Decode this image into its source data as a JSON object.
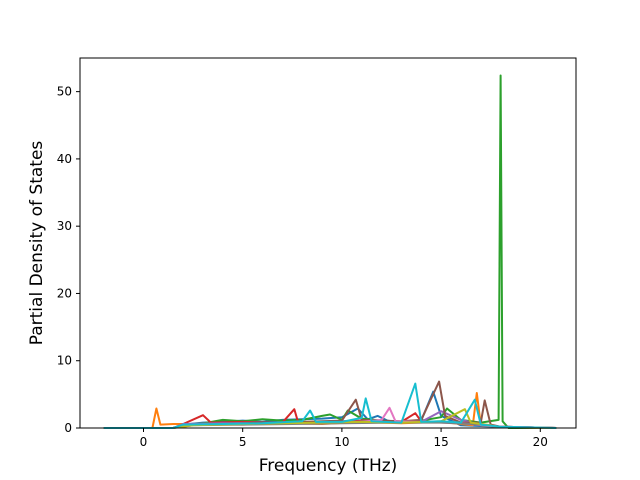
{
  "chart_data": {
    "type": "line",
    "title": "",
    "xlabel": "Frequency (THz)",
    "ylabel": "Partial Density of States",
    "xlim": [
      -3.2,
      21.8
    ],
    "ylim": [
      0,
      55
    ],
    "xticks": [
      0,
      5,
      10,
      15,
      20
    ],
    "yticks": [
      0,
      10,
      20,
      30,
      40,
      50
    ],
    "grid": false,
    "legend": "none",
    "series": [
      {
        "color": "#1f77b4",
        "points": [
          [
            -2,
            0
          ],
          [
            1.5,
            0
          ],
          [
            2.0,
            0.5
          ],
          [
            3.0,
            0.8
          ],
          [
            4.0,
            0.9
          ],
          [
            5.0,
            1.1
          ],
          [
            6.0,
            0.9
          ],
          [
            7.0,
            1.2
          ],
          [
            8.0,
            1.3
          ],
          [
            9.0,
            1.4
          ],
          [
            10.0,
            1.6
          ],
          [
            10.8,
            2.9
          ],
          [
            11.3,
            1.3
          ],
          [
            11.8,
            1.8
          ],
          [
            12.3,
            1.1
          ],
          [
            13.0,
            0.8
          ],
          [
            14.0,
            1.1
          ],
          [
            14.6,
            5.4
          ],
          [
            15.0,
            1.8
          ],
          [
            16.0,
            0.4
          ],
          [
            17.0,
            0.3
          ],
          [
            18.0,
            0.2
          ],
          [
            20.8,
            0
          ]
        ]
      },
      {
        "color": "#ff7f0e",
        "points": [
          [
            -2,
            0
          ],
          [
            0.45,
            0
          ],
          [
            0.65,
            2.9
          ],
          [
            0.85,
            0.5
          ],
          [
            1.5,
            0.6
          ],
          [
            3.0,
            0.6
          ],
          [
            5.0,
            0.5
          ],
          [
            7.0,
            0.7
          ],
          [
            9.0,
            0.6
          ],
          [
            11.0,
            0.9
          ],
          [
            13.0,
            0.7
          ],
          [
            15.0,
            0.9
          ],
          [
            16.0,
            0.6
          ],
          [
            16.6,
            0.4
          ],
          [
            16.8,
            5.2
          ],
          [
            17.0,
            0.4
          ],
          [
            18.0,
            0.2
          ],
          [
            20.8,
            0
          ]
        ]
      },
      {
        "color": "#2ca02c",
        "points": [
          [
            -2,
            0
          ],
          [
            1.5,
            0
          ],
          [
            2.0,
            0.5
          ],
          [
            3.0,
            0.7
          ],
          [
            4.0,
            1.2
          ],
          [
            5.0,
            1.0
          ],
          [
            6.0,
            1.3
          ],
          [
            7.0,
            1.1
          ],
          [
            8.0,
            1.2
          ],
          [
            9.0,
            1.8
          ],
          [
            9.4,
            2.0
          ],
          [
            10.0,
            1.2
          ],
          [
            10.3,
            2.6
          ],
          [
            11.0,
            1.4
          ],
          [
            12.0,
            1.1
          ],
          [
            13.0,
            0.9
          ],
          [
            14.0,
            1.1
          ],
          [
            15.0,
            1.6
          ],
          [
            15.3,
            2.9
          ],
          [
            16.0,
            1.2
          ],
          [
            17.0,
            0.8
          ],
          [
            17.9,
            1.2
          ],
          [
            18.0,
            52.4
          ],
          [
            18.1,
            1.0
          ],
          [
            18.4,
            0
          ],
          [
            20.8,
            0
          ]
        ]
      },
      {
        "color": "#d62728",
        "points": [
          [
            -2,
            0
          ],
          [
            1.5,
            0
          ],
          [
            2.0,
            0.6
          ],
          [
            3.0,
            1.9
          ],
          [
            3.4,
            0.8
          ],
          [
            5.0,
            0.9
          ],
          [
            7.0,
            0.8
          ],
          [
            7.6,
            2.8
          ],
          [
            7.8,
            0.8
          ],
          [
            9.0,
            0.9
          ],
          [
            11.0,
            1.1
          ],
          [
            13.0,
            0.9
          ],
          [
            13.7,
            2.2
          ],
          [
            14.0,
            1.0
          ],
          [
            16.0,
            0.8
          ],
          [
            18.0,
            0.2
          ],
          [
            20.8,
            0
          ]
        ]
      },
      {
        "color": "#9467bd",
        "points": [
          [
            -2,
            0
          ],
          [
            1.5,
            0
          ],
          [
            2.0,
            0.6
          ],
          [
            4.0,
            0.7
          ],
          [
            6.0,
            0.8
          ],
          [
            8.0,
            0.7
          ],
          [
            10.0,
            0.9
          ],
          [
            12.0,
            1.0
          ],
          [
            14.0,
            0.9
          ],
          [
            15.0,
            2.5
          ],
          [
            16.0,
            1.2
          ],
          [
            17.0,
            0.5
          ],
          [
            18.0,
            0.2
          ],
          [
            20.8,
            0
          ]
        ]
      },
      {
        "color": "#8c564b",
        "points": [
          [
            -2,
            0
          ],
          [
            1.5,
            0
          ],
          [
            2.0,
            0.4
          ],
          [
            4.0,
            0.6
          ],
          [
            6.0,
            0.8
          ],
          [
            8.0,
            0.9
          ],
          [
            10.0,
            1.1
          ],
          [
            10.7,
            4.2
          ],
          [
            11.0,
            1.2
          ],
          [
            13.0,
            1.0
          ],
          [
            14.0,
            1.2
          ],
          [
            14.9,
            6.9
          ],
          [
            15.2,
            1.8
          ],
          [
            16.0,
            0.8
          ],
          [
            17.0,
            0.8
          ],
          [
            17.2,
            4.1
          ],
          [
            17.5,
            0.5
          ],
          [
            18.0,
            0.2
          ],
          [
            20.8,
            0
          ]
        ]
      },
      {
        "color": "#e377c2",
        "points": [
          [
            -2,
            0
          ],
          [
            1.5,
            0
          ],
          [
            2.5,
            0.5
          ],
          [
            4.5,
            0.6
          ],
          [
            6.5,
            0.6
          ],
          [
            8.5,
            0.7
          ],
          [
            10.5,
            0.8
          ],
          [
            12.0,
            1.2
          ],
          [
            12.4,
            3.0
          ],
          [
            12.7,
            1.0
          ],
          [
            14.0,
            0.9
          ],
          [
            16.0,
            0.7
          ],
          [
            18.0,
            0.2
          ],
          [
            20.8,
            0
          ]
        ]
      },
      {
        "color": "#7f7f7f",
        "points": [
          [
            -2,
            0
          ],
          [
            1.5,
            0
          ],
          [
            2.5,
            0.4
          ],
          [
            5.0,
            0.5
          ],
          [
            7.5,
            0.6
          ],
          [
            10.0,
            0.7
          ],
          [
            12.5,
            0.8
          ],
          [
            15.0,
            0.8
          ],
          [
            16.5,
            0.6
          ],
          [
            17.5,
            0.4
          ],
          [
            18.0,
            0.1
          ],
          [
            20.8,
            0
          ]
        ]
      },
      {
        "color": "#bcbd22",
        "points": [
          [
            -2,
            0
          ],
          [
            1.5,
            0
          ],
          [
            2.5,
            0.4
          ],
          [
            5.0,
            0.6
          ],
          [
            7.0,
            0.7
          ],
          [
            9.0,
            0.8
          ],
          [
            11.0,
            0.9
          ],
          [
            13.0,
            0.8
          ],
          [
            15.0,
            1.0
          ],
          [
            16.2,
            2.8
          ],
          [
            16.5,
            0.8
          ],
          [
            17.5,
            0.4
          ],
          [
            18.0,
            0.1
          ],
          [
            20.8,
            0
          ]
        ]
      },
      {
        "color": "#17becf",
        "points": [
          [
            -2,
            0
          ],
          [
            1.5,
            0
          ],
          [
            2.0,
            0.5
          ],
          [
            4.0,
            0.6
          ],
          [
            6.0,
            0.7
          ],
          [
            8.0,
            1.0
          ],
          [
            8.4,
            2.6
          ],
          [
            8.7,
            0.9
          ],
          [
            10.0,
            0.9
          ],
          [
            11.0,
            1.5
          ],
          [
            11.2,
            4.4
          ],
          [
            11.5,
            1.0
          ],
          [
            13.0,
            0.8
          ],
          [
            13.7,
            6.6
          ],
          [
            14.0,
            0.9
          ],
          [
            15.0,
            1.0
          ],
          [
            16.0,
            0.8
          ],
          [
            16.7,
            4.2
          ],
          [
            17.0,
            0.5
          ],
          [
            18.0,
            0.2
          ],
          [
            20.8,
            0
          ]
        ]
      }
    ]
  }
}
